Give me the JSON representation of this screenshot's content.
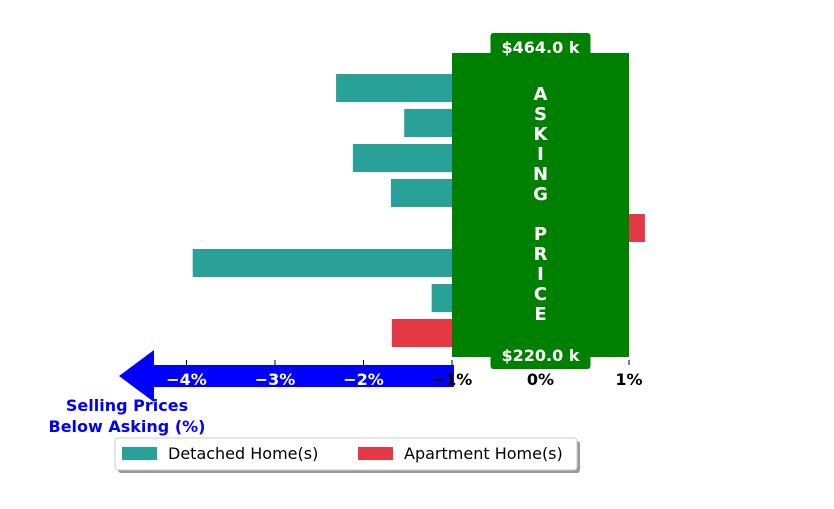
{
  "chart_data": {
    "type": "bar",
    "orientation": "horizontal",
    "xlim": [
      -4.55,
      1.25
    ],
    "x_ticks": [
      {
        "value": -4,
        "label": "−4%"
      },
      {
        "value": -3,
        "label": "−3%"
      },
      {
        "value": -2,
        "label": "−2%"
      },
      {
        "value": -1,
        "label": "−1%"
      },
      {
        "value": 0,
        "label": "0%"
      },
      {
        "value": 1,
        "label": "1%"
      }
    ],
    "bars": [
      {
        "series": "Detached Home(s)",
        "value": -2.31
      },
      {
        "series": "Detached Home(s)",
        "value": -1.54
      },
      {
        "series": "Detached Home(s)",
        "value": -2.12
      },
      {
        "series": "Detached Home(s)",
        "value": -1.69
      },
      {
        "series": "Apartment Home(s)",
        "value": 1.18
      },
      {
        "series": "Detached Home(s)",
        "value": -3.93
      },
      {
        "series": "Detached Home(s)",
        "value": -1.23
      },
      {
        "series": "Apartment Home(s)",
        "value": -1.68
      }
    ],
    "asking_band": {
      "range": [
        -1,
        1
      ],
      "label": "ASKING PRICE",
      "top_value": "$464.0 k",
      "bottom_value": "$220.0 k",
      "color": "#008000"
    },
    "arrow_annotation": {
      "label_line1": "Selling Prices",
      "label_line2": "Below Asking (%)",
      "color": "#0000ff"
    },
    "legend": {
      "placement": "bottom",
      "entries": [
        {
          "name": "Detached Home(s)",
          "color": "#2aa198"
        },
        {
          "name": "Apartment Home(s)",
          "color": "#e63946"
        }
      ]
    }
  }
}
